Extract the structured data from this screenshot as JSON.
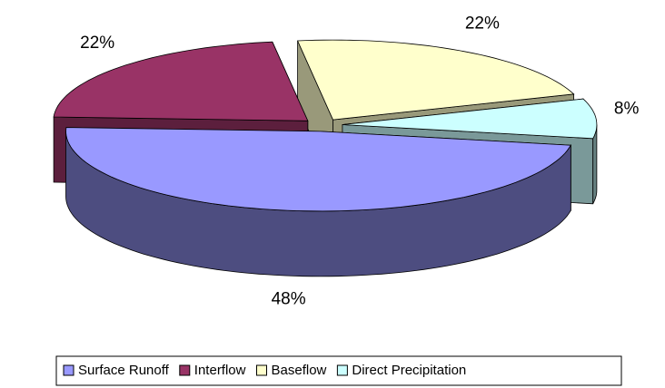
{
  "chart_data": {
    "type": "pie",
    "three_d": true,
    "exploded": true,
    "categories": [
      "Surface Runoff",
      "Interflow",
      "Baseflow",
      "Direct Precipitation"
    ],
    "values": [
      48,
      22,
      22,
      8
    ],
    "value_labels": [
      "48%",
      "22%",
      "22%",
      "8%"
    ],
    "colors": [
      "#9999ff",
      "#993366",
      "#ffffcc",
      "#ccffff"
    ],
    "legend": "bottom"
  }
}
